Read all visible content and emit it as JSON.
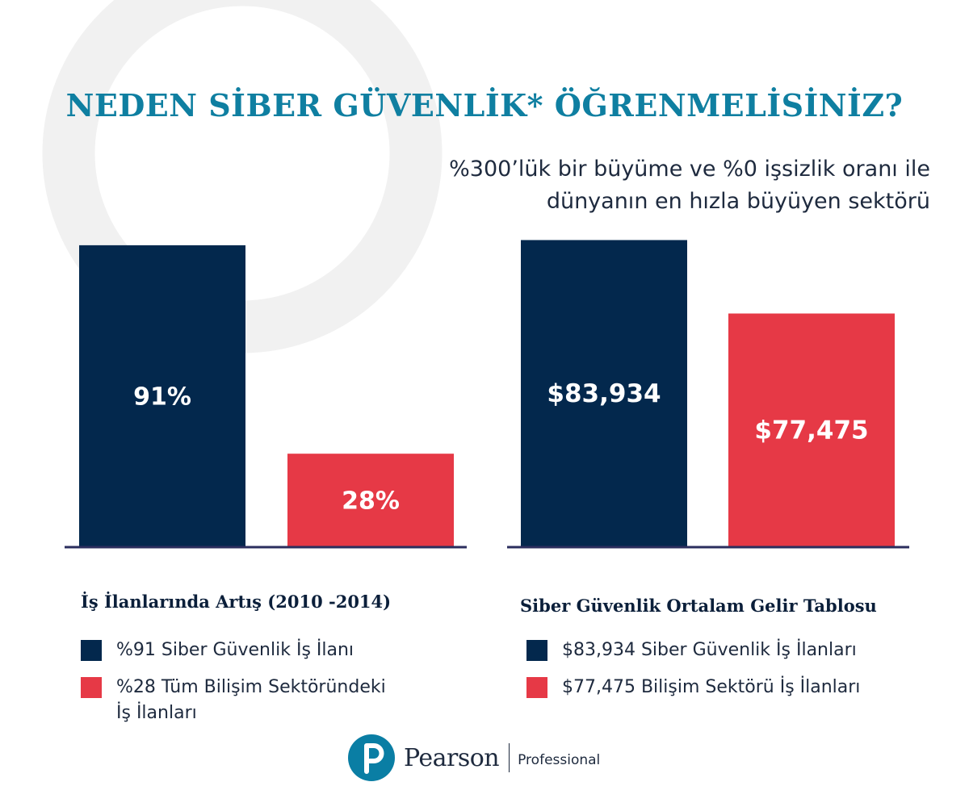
{
  "title": "NEDEN SİBER GÜVENLİK* ÖĞRENMELİSİNİZ?",
  "subtitle": {
    "line1": "%300’lük bir büyüme ve %0 işsizlik oranı ile",
    "line2": "dünyanın en hızla büyüyen sektörü"
  },
  "colors": {
    "title": "#0f7fa1",
    "navy": "#03284d",
    "red": "#e63946",
    "axis": "#2b2e5e",
    "arc": "#f1f1f1"
  },
  "chart_data": [
    {
      "type": "bar",
      "title": "İş İlanlarında Artış (2010 -2014)",
      "categories": [
        "%91 Siber Güvenlik İş İlanı",
        "%28 Tüm Bilişim Sektöründeki\nİş İlanları"
      ],
      "values": [
        91,
        28
      ],
      "value_labels": [
        "91%",
        "28%"
      ],
      "ylim": [
        0,
        100
      ],
      "colors": [
        "#03284d",
        "#e63946"
      ],
      "grid": false,
      "legend": "bottom"
    },
    {
      "type": "bar",
      "title": "Siber Güvenlik Ortalam Gelir Tablosu",
      "categories": [
        "$83,934 Siber Güvenlik İş İlanları",
        "$77,475 Bilişim Sektörü İş İlanları"
      ],
      "values": [
        83934,
        77475
      ],
      "value_labels": [
        "$83,934",
        "$77,475"
      ],
      "ylim": [
        57000,
        90000
      ],
      "colors": [
        "#03284d",
        "#e63946"
      ],
      "grid": false,
      "legend": "bottom"
    }
  ],
  "brand": {
    "name": "Pearson",
    "sub": "Professional",
    "logo_icon": "pearson-p-icon"
  }
}
